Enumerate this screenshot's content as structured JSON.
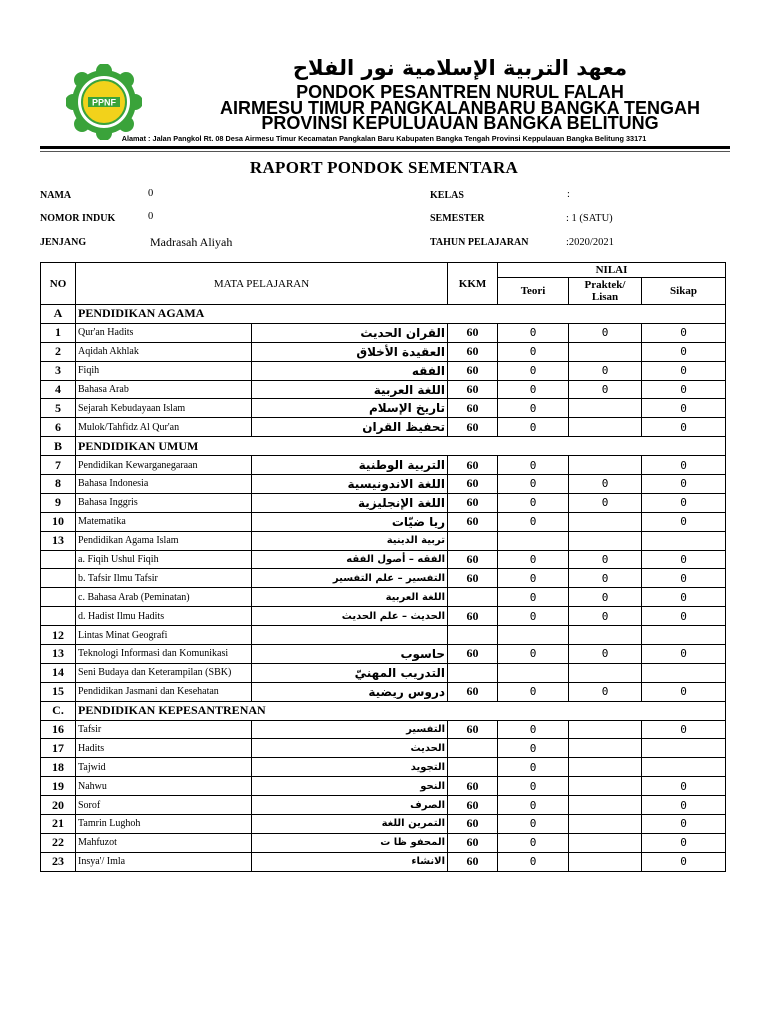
{
  "header": {
    "logo_text": "PPNF",
    "arabic_title": "معهد التربية الإسلامية نور الفلاح",
    "line1": "PONDOK PESANTREN NURUL FALAH",
    "line2": "AIRMESU TIMUR PANGKALANBARU BANGKA TENGAH",
    "line3": "PROVINSI KEPULUAUAN BANGKA BELITUNG",
    "address": "Alamat : Jalan Pangkol Rt. 08 Desa Airmesu Timur Kecamatan Pangkalan Baru Kabupaten Bangka Tengah Provinsi Keppulauan Bangka Belitung 33171",
    "brand_green": "#3aa33a",
    "brand_yellow": "#f2d21b"
  },
  "title": "RAPORT PONDOK SEMENTARA",
  "info": {
    "nama_label": "NAMA",
    "nama": "0",
    "nomor_label": "NOMOR INDUK",
    "nomor": "0",
    "jenjang_label": "JENJANG",
    "jenjang": "Madrasah Aliyah",
    "kelas_label": "KELAS",
    "kelas": ":",
    "semester_label": "SEMESTER",
    "semester": ": 1 (SATU)",
    "tahun_label": "TAHUN PELAJARAN",
    "tahun": ":2020/2021"
  },
  "table": {
    "headers": {
      "no": "NO",
      "mapel": "MATA PELAJARAN",
      "kkm": "KKM",
      "nilai": "NILAI",
      "teori": "Teori",
      "praktek": "Praktek/ Lisan",
      "sikap": "Sikap"
    },
    "rows": [
      {
        "section": true,
        "no": "A",
        "name": "PENDIDIKAN AGAMA"
      },
      {
        "no": "1",
        "name": "Qur'an Hadits",
        "ar": "القران الحديث",
        "big": true,
        "kkm": "60",
        "t": "0",
        "p": "0",
        "s": "0"
      },
      {
        "no": "2",
        "name": "Aqidah Akhlak",
        "ar": "العقيدة الأخلاق",
        "big": true,
        "kkm": "60",
        "t": "0",
        "p": "",
        "s": "0"
      },
      {
        "no": "3",
        "name": "Fiqih",
        "ar": "الفقه",
        "big": true,
        "kkm": "60",
        "t": "0",
        "p": "0",
        "s": "0"
      },
      {
        "no": "4",
        "name": "Bahasa Arab",
        "ar": "اللغة العربية",
        "big": true,
        "kkm": "60",
        "t": "0",
        "p": "0",
        "s": "0"
      },
      {
        "no": "5",
        "name": "Sejarah Kebudayaan Islam",
        "ar": "تاريخ الإسلام",
        "big": true,
        "kkm": "60",
        "t": "0",
        "p": "",
        "s": "0"
      },
      {
        "no": "6",
        "name": "Mulok/Tahfidz Al Qur'an",
        "ar": "تحفيظ القران",
        "big": true,
        "kkm": "60",
        "t": "0",
        "p": "",
        "s": "0"
      },
      {
        "section": true,
        "no": "B",
        "name": "PENDIDIKAN UMUM"
      },
      {
        "no": "7",
        "name": "Pendidikan Kewarganegaraan",
        "ar": "التربية الوطنية",
        "big": true,
        "kkm": "60",
        "t": "0",
        "p": "",
        "s": "0"
      },
      {
        "no": "8",
        "name": "Bahasa Indonesia",
        "ar": "اللغة الاندونيسية",
        "big": true,
        "kkm": "60",
        "t": "0",
        "p": "0",
        "s": "0"
      },
      {
        "no": "9",
        "name": "Bahasa Inggris",
        "ar": "اللغة الإنجليزية",
        "big": true,
        "kkm": "60",
        "t": "0",
        "p": "0",
        "s": "0"
      },
      {
        "no": "10",
        "name": "Matematika",
        "ar": "ريا ضيّات",
        "big": true,
        "kkm": "60",
        "t": "0",
        "p": "",
        "s": "0"
      },
      {
        "no": "13",
        "name": "Pendidikan Agama Islam",
        "ar": "تربية الدينية",
        "kkm": "",
        "t": "",
        "p": "",
        "s": ""
      },
      {
        "no": "",
        "name": "a. Fiqih Ushul Fiqih",
        "ar": "الفقه – أصول الفقه",
        "kkm": "60",
        "t": "0",
        "p": "0",
        "s": "0"
      },
      {
        "no": "",
        "name": "b. Tafsir Ilmu Tafsir",
        "ar": "التفسير – علم التفسير",
        "kkm": "60",
        "t": "0",
        "p": "0",
        "s": "0"
      },
      {
        "no": "",
        "name": "c. Bahasa Arab (Peminatan)",
        "ar": "اللغة العربية",
        "kkm": "",
        "t": "0",
        "p": "0",
        "s": "0"
      },
      {
        "no": "",
        "name": "d. Hadist Ilmu Hadits",
        "ar": "الحديث – علم الحديث",
        "kkm": "60",
        "t": "0",
        "p": "0",
        "s": "0"
      },
      {
        "no": "12",
        "name": "Lintas Minat Geografi",
        "ar": "",
        "kkm": "",
        "t": "",
        "p": "",
        "s": ""
      },
      {
        "no": "13",
        "name": "Teknologi Informasi dan Komunikasi",
        "ar": "حاسوب",
        "big": true,
        "kkm": "60",
        "t": "0",
        "p": "0",
        "s": "0"
      },
      {
        "no": "14",
        "name": "Seni Budaya dan Keterampilan (SBK)",
        "ar": "التدريب المهنيّ",
        "big": true,
        "kkm": "",
        "t": "",
        "p": "",
        "s": ""
      },
      {
        "no": "15",
        "name": "Pendidikan Jasmani dan Kesehatan",
        "ar": "دروس ريضية",
        "big": true,
        "kkm": "60",
        "t": "0",
        "p": "0",
        "s": "0"
      },
      {
        "section": true,
        "no": "C.",
        "name": "PENDIDIKAN KEPESANTRENAN"
      },
      {
        "no": "16",
        "name": "Tafsir",
        "ar": "التفسير",
        "kkm": "60",
        "t": "0",
        "p": "",
        "s": "0"
      },
      {
        "no": "17",
        "name": "Hadits",
        "ar": "الحديث",
        "kkm": "",
        "t": "0",
        "p": "",
        "s": ""
      },
      {
        "no": "18",
        "name": "Tajwid",
        "ar": "التجويد",
        "kkm": "",
        "t": "0",
        "p": "",
        "s": ""
      },
      {
        "no": "19",
        "name": "Nahwu",
        "ar": "النحو",
        "kkm": "60",
        "t": "0",
        "p": "",
        "s": "0"
      },
      {
        "no": "20",
        "name": "Sorof",
        "ar": "الصرف",
        "kkm": "60",
        "t": "0",
        "p": "",
        "s": "0"
      },
      {
        "no": "21",
        "name": "Tamrin Lughoh",
        "ar": "التمرين اللغة",
        "kkm": "60",
        "t": "0",
        "p": "",
        "s": "0"
      },
      {
        "no": "22",
        "name": "Mahfuzot",
        "ar": "المحفو ظا ت",
        "kkm": "60",
        "t": "0",
        "p": "",
        "s": "0"
      },
      {
        "no": "23",
        "name": "Insya'/ Imla",
        "ar": "الانشاء",
        "kkm": "60",
        "t": "0",
        "p": "",
        "s": "0"
      }
    ]
  }
}
